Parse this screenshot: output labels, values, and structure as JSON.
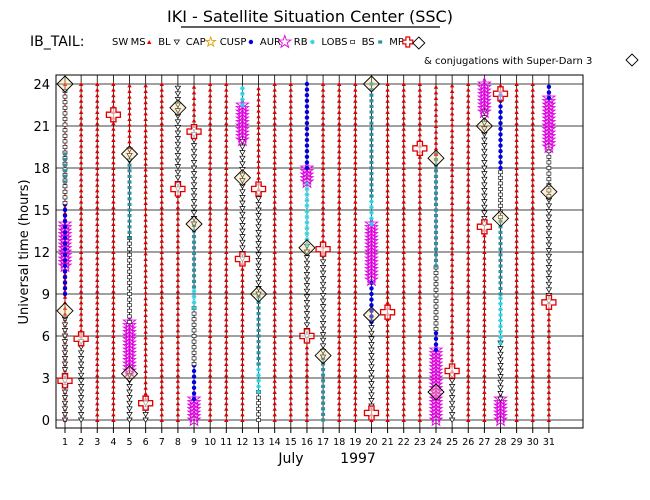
{
  "title": "IKI - Satellite Situation Center (SSC)",
  "satellite": "IB_TAIL:",
  "legend": [
    {
      "label": "SW",
      "symbol": "none",
      "color": "#000000"
    },
    {
      "label": "MS",
      "symbol": "triangle",
      "color": "#e00000"
    },
    {
      "label": "BL",
      "symbol": "open-triangle",
      "color": "#000000"
    },
    {
      "label": "CAP",
      "symbol": "open-star",
      "color": "#e0a000"
    },
    {
      "label": "CUSP",
      "symbol": "dot",
      "color": "#0000e0"
    },
    {
      "label": "AUR",
      "symbol": "open-star",
      "color": "#e000e0"
    },
    {
      "label": "RB",
      "symbol": "asterisk",
      "color": "#30d0e0"
    },
    {
      "label": "LOBS",
      "symbol": "open-square",
      "color": "#000000"
    },
    {
      "label": "BS",
      "symbol": "square",
      "color": "#3090a0"
    },
    {
      "label": "MP",
      "symbol": "cross",
      "color": "#e00000"
    }
  ],
  "conjugations_note": "& conjugations with Super-Darn 3",
  "colors": {
    "sw": "#000000",
    "ms": "#e00000",
    "bl": "#000000",
    "cap": "#e0a000",
    "cusp": "#0000e0",
    "aur": "#e000e0",
    "rb": "#30d0e0",
    "lobs": "#000000",
    "bs": "#3090a0",
    "mp": "#e00000",
    "conj": "#000000",
    "conj_fill": "#f0d890"
  },
  "chart_data": {
    "type": "scatter",
    "xlabel_month": "July",
    "xlabel_year": "1997",
    "ylabel": "Universal time (hours)",
    "xlim": [
      1,
      31
    ],
    "ylim": [
      0,
      24
    ],
    "x_ticks": [
      1,
      2,
      3,
      4,
      5,
      6,
      7,
      8,
      9,
      10,
      11,
      12,
      13,
      14,
      15,
      16,
      17,
      18,
      19,
      20,
      21,
      22,
      23,
      24,
      25,
      26,
      27,
      28,
      29,
      30,
      31
    ],
    "y_ticks": [
      0,
      3,
      6,
      9,
      12,
      15,
      18,
      21,
      24
    ],
    "intervals": [
      {
        "day": 1,
        "region": "MS",
        "from": 0,
        "to": 24
      },
      {
        "day": 1,
        "region": "BL",
        "from": 0,
        "to": 7.5
      },
      {
        "day": 1,
        "region": "AUR",
        "from": 11,
        "to": 14
      },
      {
        "day": 1,
        "region": "CUSP",
        "from": 9,
        "to": 15.5
      },
      {
        "day": 1,
        "region": "LOBS",
        "from": 15.5,
        "to": 23.5
      },
      {
        "day": 1,
        "region": "BS",
        "from": 17,
        "to": 19
      },
      {
        "day": 2,
        "region": "BL",
        "from": 0,
        "to": 6
      },
      {
        "day": 2,
        "region": "MS",
        "from": 6,
        "to": 24
      },
      {
        "day": 3,
        "region": "MS",
        "from": 0,
        "to": 24
      },
      {
        "day": 4,
        "region": "MS",
        "from": 0,
        "to": 24
      },
      {
        "day": 5,
        "region": "BL",
        "from": 0,
        "to": 3.5
      },
      {
        "day": 5,
        "region": "AUR",
        "from": 3.5,
        "to": 7
      },
      {
        "day": 5,
        "region": "LOBS",
        "from": 7,
        "to": 13
      },
      {
        "day": 5,
        "region": "BS",
        "from": 13,
        "to": 18.5
      },
      {
        "day": 5,
        "region": "BL",
        "from": 18.5,
        "to": 19.5
      },
      {
        "day": 5,
        "region": "MS",
        "from": 19.5,
        "to": 24
      },
      {
        "day": 6,
        "region": "BL",
        "from": 0,
        "to": 1.5
      },
      {
        "day": 6,
        "region": "MS",
        "from": 1.5,
        "to": 24
      },
      {
        "day": 7,
        "region": "MS",
        "from": 0,
        "to": 24
      },
      {
        "day": 8,
        "region": "MS",
        "from": 0,
        "to": 16.5
      },
      {
        "day": 8,
        "region": "BL",
        "from": 16.5,
        "to": 24
      },
      {
        "day": 9,
        "region": "AUR",
        "from": 0,
        "to": 1.5
      },
      {
        "day": 9,
        "region": "CUSP",
        "from": 1.5,
        "to": 4
      },
      {
        "day": 9,
        "region": "LOBS",
        "from": 4,
        "to": 8
      },
      {
        "day": 9,
        "region": "RB",
        "from": 8,
        "to": 9.5
      },
      {
        "day": 9,
        "region": "BS",
        "from": 9.5,
        "to": 14
      },
      {
        "day": 9,
        "region": "BL",
        "from": 14,
        "to": 21
      },
      {
        "day": 9,
        "region": "MS",
        "from": 21,
        "to": 24
      },
      {
        "day": 10,
        "region": "MS",
        "from": 0,
        "to": 24
      },
      {
        "day": 11,
        "region": "MS",
        "from": 0,
        "to": 24
      },
      {
        "day": 12,
        "region": "MS",
        "from": 0,
        "to": 11.5
      },
      {
        "day": 12,
        "region": "BL",
        "from": 11.5,
        "to": 20
      },
      {
        "day": 12,
        "region": "AUR",
        "from": 20,
        "to": 22.5
      },
      {
        "day": 12,
        "region": "RB",
        "from": 22.5,
        "to": 24
      },
      {
        "day": 13,
        "region": "LOBS",
        "from": 0,
        "to": 2
      },
      {
        "day": 13,
        "region": "RB",
        "from": 2,
        "to": 4
      },
      {
        "day": 13,
        "region": "BS",
        "from": 4,
        "to": 9
      },
      {
        "day": 13,
        "region": "BL",
        "from": 9,
        "to": 16.5
      },
      {
        "day": 13,
        "region": "MS",
        "from": 16.5,
        "to": 24
      },
      {
        "day": 14,
        "region": "MS",
        "from": 0,
        "to": 24
      },
      {
        "day": 15,
        "region": "MS",
        "from": 0,
        "to": 24
      },
      {
        "day": 16,
        "region": "MS",
        "from": 0,
        "to": 6
      },
      {
        "day": 16,
        "region": "BL",
        "from": 6,
        "to": 12.5
      },
      {
        "day": 16,
        "region": "RB",
        "from": 12.5,
        "to": 17
      },
      {
        "day": 16,
        "region": "AUR",
        "from": 17,
        "to": 18
      },
      {
        "day": 16,
        "region": "CUSP",
        "from": 18,
        "to": 24
      },
      {
        "day": 17,
        "region": "BS",
        "from": 0,
        "to": 4.5
      },
      {
        "day": 17,
        "region": "BL",
        "from": 4.5,
        "to": 12
      },
      {
        "day": 17,
        "region": "MS",
        "from": 12,
        "to": 24
      },
      {
        "day": 18,
        "region": "MS",
        "from": 0,
        "to": 24
      },
      {
        "day": 19,
        "region": "MS",
        "from": 0,
        "to": 24
      },
      {
        "day": 20,
        "region": "MS",
        "from": 0,
        "to": 1
      },
      {
        "day": 20,
        "region": "BL",
        "from": 1,
        "to": 7
      },
      {
        "day": 20,
        "region": "CUSP",
        "from": 7,
        "to": 10
      },
      {
        "day": 20,
        "region": "AUR",
        "from": 10,
        "to": 14
      },
      {
        "day": 20,
        "region": "RB",
        "from": 14,
        "to": 16
      },
      {
        "day": 20,
        "region": "BS",
        "from": 16,
        "to": 24
      },
      {
        "day": 21,
        "region": "MS",
        "from": 0,
        "to": 24
      },
      {
        "day": 22,
        "region": "MS",
        "from": 0,
        "to": 24
      },
      {
        "day": 23,
        "region": "MS",
        "from": 0,
        "to": 24
      },
      {
        "day": 24,
        "region": "AUR",
        "from": 0,
        "to": 5
      },
      {
        "day": 24,
        "region": "CUSP",
        "from": 5,
        "to": 6.5
      },
      {
        "day": 24,
        "region": "LOBS",
        "from": 6.5,
        "to": 11
      },
      {
        "day": 24,
        "region": "BS",
        "from": 11,
        "to": 19
      },
      {
        "day": 24,
        "region": "MS",
        "from": 19,
        "to": 24
      },
      {
        "day": 25,
        "region": "BL",
        "from": 0,
        "to": 3.5
      },
      {
        "day": 25,
        "region": "MS",
        "from": 3.5,
        "to": 24
      },
      {
        "day": 26,
        "region": "MS",
        "from": 0,
        "to": 24
      },
      {
        "day": 27,
        "region": "MS",
        "from": 0,
        "to": 14
      },
      {
        "day": 27,
        "region": "BL",
        "from": 14,
        "to": 22
      },
      {
        "day": 27,
        "region": "AUR",
        "from": 22,
        "to": 24
      },
      {
        "day": 28,
        "region": "AUR",
        "from": 0,
        "to": 1.5
      },
      {
        "day": 28,
        "region": "BL",
        "from": 1.5,
        "to": 5.5
      },
      {
        "day": 28,
        "region": "RB",
        "from": 5.5,
        "to": 9
      },
      {
        "day": 28,
        "region": "BS",
        "from": 9,
        "to": 14.5
      },
      {
        "day": 28,
        "region": "LOBS",
        "from": 14.5,
        "to": 18
      },
      {
        "day": 28,
        "region": "CUSP",
        "from": 18,
        "to": 23.5
      },
      {
        "day": 28,
        "region": "MS",
        "from": 23.5,
        "to": 24
      },
      {
        "day": 29,
        "region": "MS",
        "from": 0,
        "to": 24
      },
      {
        "day": 30,
        "region": "MS",
        "from": 0,
        "to": 24
      },
      {
        "day": 31,
        "region": "MS",
        "from": 0,
        "to": 8.5
      },
      {
        "day": 31,
        "region": "BL",
        "from": 8.5,
        "to": 16
      },
      {
        "day": 31,
        "region": "LOBS",
        "from": 16,
        "to": 19.5
      },
      {
        "day": 31,
        "region": "AUR",
        "from": 19.5,
        "to": 23
      },
      {
        "day": 31,
        "region": "CUSP",
        "from": 23,
        "to": 24
      }
    ],
    "crossings_mp": [
      {
        "day": 1,
        "ut": 2.8
      },
      {
        "day": 2,
        "ut": 5.8
      },
      {
        "day": 4,
        "ut": 21.8
      },
      {
        "day": 6,
        "ut": 1.2
      },
      {
        "day": 8,
        "ut": 16.5
      },
      {
        "day": 9,
        "ut": 20.6
      },
      {
        "day": 12,
        "ut": 11.5
      },
      {
        "day": 13,
        "ut": 16.5
      },
      {
        "day": 16,
        "ut": 6.0
      },
      {
        "day": 17,
        "ut": 12.2
      },
      {
        "day": 20,
        "ut": 0.5
      },
      {
        "day": 21,
        "ut": 7.7
      },
      {
        "day": 23,
        "ut": 19.4
      },
      {
        "day": 25,
        "ut": 3.5
      },
      {
        "day": 27,
        "ut": 13.8
      },
      {
        "day": 28,
        "ut": 23.3
      },
      {
        "day": 31,
        "ut": 8.4
      }
    ],
    "conjugations": [
      {
        "day": 1,
        "ut": 24
      },
      {
        "day": 1,
        "ut": 7.8
      },
      {
        "day": 5,
        "ut": 3.3
      },
      {
        "day": 5,
        "ut": 19.0
      },
      {
        "day": 8,
        "ut": 22.3
      },
      {
        "day": 9,
        "ut": 14.0
      },
      {
        "day": 12,
        "ut": 17.3
      },
      {
        "day": 13,
        "ut": 9.0
      },
      {
        "day": 16,
        "ut": 12.3
      },
      {
        "day": 17,
        "ut": 4.6
      },
      {
        "day": 20,
        "ut": 24
      },
      {
        "day": 20,
        "ut": 7.5
      },
      {
        "day": 24,
        "ut": 18.7
      },
      {
        "day": 24,
        "ut": 2.0
      },
      {
        "day": 27,
        "ut": 21.0
      },
      {
        "day": 28,
        "ut": 14.4
      },
      {
        "day": 31,
        "ut": 16.3
      }
    ]
  }
}
